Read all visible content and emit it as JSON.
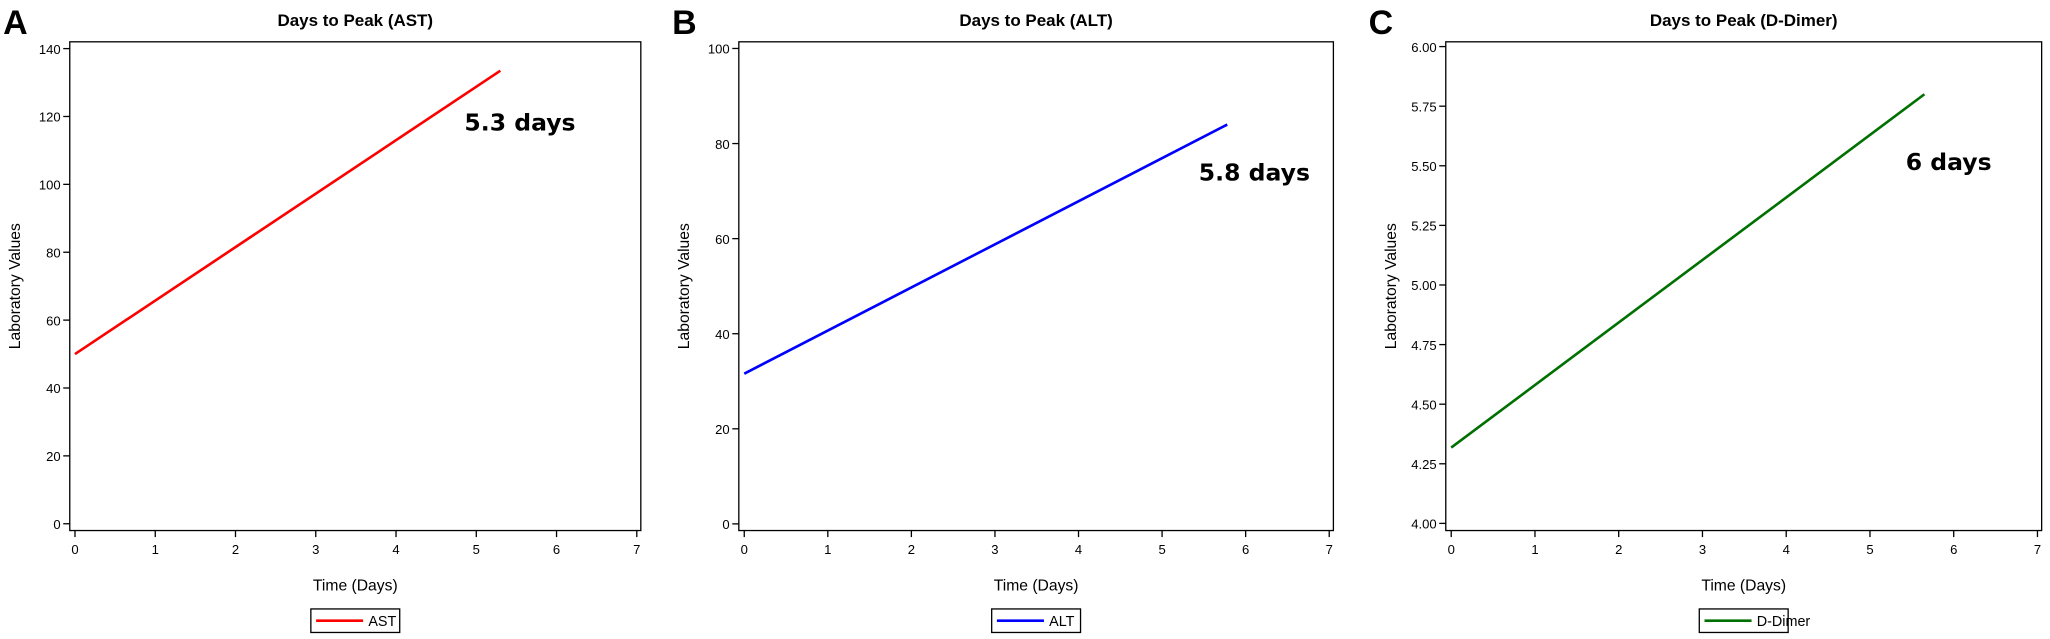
{
  "chart_data": [
    {
      "type": "line",
      "panel": "A",
      "title": "Days to Peak (AST)",
      "x_label": "Time (Days)",
      "y_label": "Laboratory Values",
      "x": [
        0,
        5.3
      ],
      "series": [
        {
          "name": "AST",
          "color": "#ff0000",
          "values": [
            50,
            133.5
          ]
        }
      ],
      "xlim": [
        -0.065,
        7.05
      ],
      "ylim": [
        -2,
        142
      ],
      "xticks": [
        0,
        1,
        2,
        3,
        4,
        5,
        6,
        7
      ],
      "yticks": [
        0,
        20,
        40,
        60,
        80,
        100,
        120,
        140
      ],
      "annotation": "5.3 days"
    },
    {
      "type": "line",
      "panel": "B",
      "title": "Days to Peak (ALT)",
      "x_label": "Time (Days)",
      "y_label": "Laboratory Values",
      "x": [
        0,
        5.78
      ],
      "series": [
        {
          "name": "ALT",
          "color": "#0000ff",
          "values": [
            31.6,
            84
          ]
        }
      ],
      "xlim": [
        -0.065,
        7.05
      ],
      "ylim": [
        -1.4,
        101.4
      ],
      "xticks": [
        0,
        1,
        2,
        3,
        4,
        5,
        6,
        7
      ],
      "yticks": [
        0,
        20,
        40,
        60,
        80,
        100
      ],
      "annotation": "5.8 days"
    },
    {
      "type": "line",
      "panel": "C",
      "title": "Days to Peak (D-Dimer)",
      "x_label": "Time (Days)",
      "y_label": "Laboratory Values",
      "x": [
        0,
        5.65
      ],
      "series": [
        {
          "name": "D-Dimer",
          "color": "#007000",
          "values": [
            4.318,
            5.8
          ]
        }
      ],
      "xlim": [
        -0.065,
        7.05
      ],
      "ylim": [
        3.97,
        6.02
      ],
      "xticks": [
        0,
        1,
        2,
        3,
        4,
        5,
        6,
        7
      ],
      "yticks": [
        {
          "value": 4,
          "label": "4.00"
        },
        {
          "value": 4.25,
          "label": "4.25"
        },
        {
          "value": 4.5,
          "label": "4.50"
        },
        {
          "value": 4.75,
          "label": "4.75"
        },
        {
          "value": 5,
          "label": "5.00"
        },
        {
          "value": 5.25,
          "label": "5.25"
        },
        {
          "value": 5.5,
          "label": "5.50"
        },
        {
          "value": 5.75,
          "label": "5.75"
        },
        {
          "value": 6,
          "label": "6.00"
        }
      ],
      "annotation": "6 days"
    }
  ]
}
